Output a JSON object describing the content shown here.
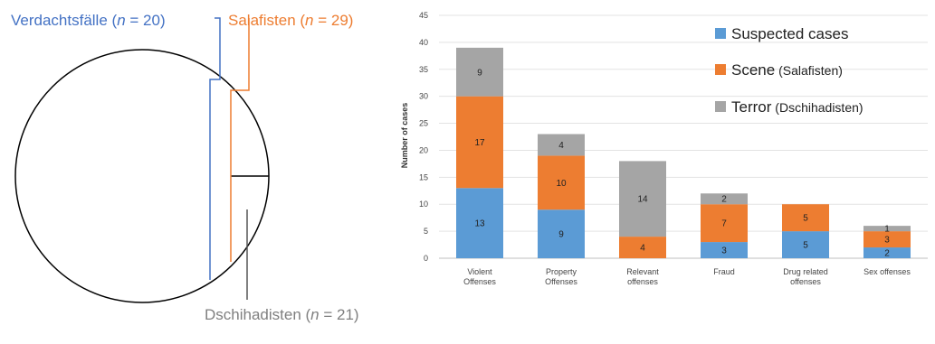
{
  "venn": {
    "labels": [
      {
        "prefix": "Verdachtsfälle (",
        "n": "n",
        "suffix": " = 20)",
        "color": "#4472c4"
      },
      {
        "prefix": "Salafisten (",
        "n": "n",
        "suffix": " = 29)",
        "color": "#ed7d31"
      },
      {
        "prefix": "Dschihadisten (",
        "n": "n",
        "suffix": " = 21)",
        "color": "#7f7f7f"
      }
    ]
  },
  "colors": {
    "suspected": "#5b9bd5",
    "scene": "#ed7d31",
    "terror": "#a5a5a5"
  },
  "chart_data": {
    "type": "bar",
    "stacked": true,
    "categories": [
      [
        "Violent",
        "Offenses"
      ],
      [
        "Property",
        "Offenses"
      ],
      [
        "Relevant",
        "offenses"
      ],
      [
        "Fraud"
      ],
      [
        "Drug related",
        "offenses"
      ],
      [
        "Sex offenses"
      ]
    ],
    "series": [
      {
        "name": "Suspected cases",
        "name_suffix": "",
        "values": [
          13,
          9,
          0,
          3,
          5,
          2
        ],
        "labels": [
          "13",
          "9",
          "",
          "3",
          "5",
          "2"
        ]
      },
      {
        "name": "Scene",
        "name_suffix": " (Salafisten)",
        "values": [
          17,
          10,
          4,
          7,
          5,
          3
        ],
        "labels": [
          "17",
          "10",
          "4",
          "7",
          "5",
          "3"
        ]
      },
      {
        "name": "Terror",
        "name_suffix": " (Dschihadisten)",
        "values": [
          9,
          4,
          14,
          2,
          0,
          1
        ],
        "labels": [
          "9",
          "4",
          "14",
          "2",
          "",
          "1"
        ]
      }
    ],
    "ylabel": "Number of cases",
    "ylim": [
      0,
      45
    ],
    "yticks": [
      "0",
      "5",
      "10",
      "15",
      "20",
      "25",
      "30",
      "35",
      "40",
      "45"
    ],
    "grid": true,
    "legend": "top-right"
  }
}
